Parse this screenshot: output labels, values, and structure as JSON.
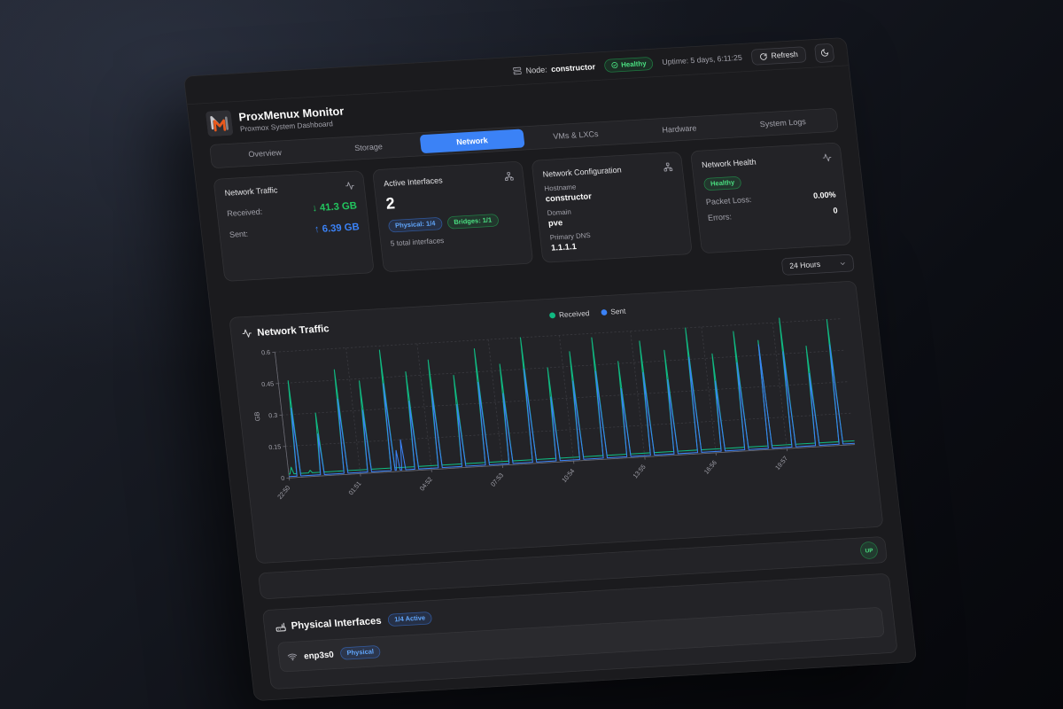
{
  "topbar": {
    "node_label": "Node:",
    "node_value": "constructor",
    "health_badge": "Healthy",
    "uptime": "Uptime: 5 days, 6:11:25",
    "refresh_label": "Refresh"
  },
  "header": {
    "title": "ProxMenux Monitor",
    "subtitle": "Proxmox System Dashboard"
  },
  "tabs": [
    {
      "label": "Overview",
      "active": false
    },
    {
      "label": "Storage",
      "active": false
    },
    {
      "label": "Network",
      "active": true
    },
    {
      "label": "VMs & LXCs",
      "active": false
    },
    {
      "label": "Hardware",
      "active": false
    },
    {
      "label": "System Logs",
      "active": false
    }
  ],
  "cards": {
    "traffic": {
      "title": "Network Traffic",
      "received_label": "Received:",
      "received_value": "↓ 41.3 GB",
      "sent_label": "Sent:",
      "sent_value": "↑ 6.39 GB"
    },
    "interfaces": {
      "title": "Active Interfaces",
      "count": "2",
      "physical_badge": "Physical: 1/4",
      "bridges_badge": "Bridges: 1/1",
      "total": "5 total interfaces"
    },
    "config": {
      "title": "Network Configuration",
      "hostname_label": "Hostname",
      "hostname": "constructor",
      "domain_label": "Domain",
      "domain": "pve",
      "dns_label": "Primary DNS",
      "dns": "1.1.1.1"
    },
    "health": {
      "title": "Network Health",
      "status_badge": "Healthy",
      "packet_loss_label": "Packet Loss:",
      "packet_loss": "0.00%",
      "errors_label": "Errors:",
      "errors": "0"
    }
  },
  "range_select": {
    "value": "24 Hours"
  },
  "chart_card": {
    "title": "Network Traffic"
  },
  "status_row": {
    "badge": "UP"
  },
  "physical": {
    "title": "Physical Interfaces",
    "active_badge": "1/4 Active",
    "rows": [
      {
        "name": "enp3s0",
        "type_badge": "Physical"
      }
    ]
  },
  "colors": {
    "accent_blue": "#3b82f6",
    "accent_green": "#22c55e",
    "chart_received": "#10b981",
    "chart_sent": "#3b82f6",
    "logo_orange": "#e8591d"
  },
  "chart_data": {
    "type": "line",
    "title": "Network Traffic",
    "ylabel": "GB",
    "ylim": [
      0,
      0.6
    ],
    "yticks": [
      0,
      0.15,
      0.3,
      0.45,
      0.6
    ],
    "x_range_minutes": [
      0,
      1440
    ],
    "x_ticks_minutes": [
      0,
      181,
      362,
      543,
      724,
      905,
      1086,
      1267
    ],
    "x_ticklabels": [
      "22:50",
      "01:51",
      "04:52",
      "07:53",
      "10:54",
      "13:55",
      "16:56",
      "19:57"
    ],
    "grid": "dashed",
    "legend_position": "top-center",
    "legend": [
      "Received",
      "Sent"
    ],
    "series": [
      {
        "name": "Received",
        "color": "#10b981",
        "baseline": 0.018,
        "spikes": [
          {
            "m": 8,
            "v": 0.05
          },
          {
            "m": 55,
            "v": 0.03
          },
          {
            "m": 25,
            "v": 0.46
          },
          {
            "m": 85,
            "v": 0.3
          },
          {
            "m": 145,
            "v": 0.5
          },
          {
            "m": 205,
            "v": 0.44
          },
          {
            "m": 265,
            "v": 0.58
          },
          {
            "m": 325,
            "v": 0.47
          },
          {
            "m": 385,
            "v": 0.52
          },
          {
            "m": 445,
            "v": 0.44
          },
          {
            "m": 505,
            "v": 0.56
          },
          {
            "m": 565,
            "v": 0.48
          },
          {
            "m": 625,
            "v": 0.6
          },
          {
            "m": 685,
            "v": 0.45
          },
          {
            "m": 745,
            "v": 0.52
          },
          {
            "m": 805,
            "v": 0.58
          },
          {
            "m": 865,
            "v": 0.46
          },
          {
            "m": 925,
            "v": 0.55
          },
          {
            "m": 985,
            "v": 0.5
          },
          {
            "m": 1045,
            "v": 0.6
          },
          {
            "m": 1105,
            "v": 0.47
          },
          {
            "m": 1165,
            "v": 0.57
          },
          {
            "m": 1225,
            "v": 0.52
          },
          {
            "m": 1285,
            "v": 0.62
          },
          {
            "m": 1345,
            "v": 0.48
          },
          {
            "m": 1405,
            "v": 0.6
          }
        ]
      },
      {
        "name": "Sent",
        "color": "#3b82f6",
        "baseline": 0.006,
        "spikes": [
          {
            "m": 278,
            "v": 0.1
          },
          {
            "m": 292,
            "v": 0.15
          },
          {
            "m": 25,
            "v": 0.33
          },
          {
            "m": 85,
            "v": 0.2
          },
          {
            "m": 145,
            "v": 0.36
          },
          {
            "m": 205,
            "v": 0.3
          },
          {
            "m": 265,
            "v": 0.42
          },
          {
            "m": 325,
            "v": 0.33
          },
          {
            "m": 385,
            "v": 0.38
          },
          {
            "m": 445,
            "v": 0.3
          },
          {
            "m": 505,
            "v": 0.4
          },
          {
            "m": 565,
            "v": 0.34
          },
          {
            "m": 625,
            "v": 0.45
          },
          {
            "m": 685,
            "v": 0.31
          },
          {
            "m": 745,
            "v": 0.38
          },
          {
            "m": 805,
            "v": 0.42
          },
          {
            "m": 865,
            "v": 0.33
          },
          {
            "m": 925,
            "v": 0.4
          },
          {
            "m": 985,
            "v": 0.36
          },
          {
            "m": 1045,
            "v": 0.46
          },
          {
            "m": 1105,
            "v": 0.34
          },
          {
            "m": 1165,
            "v": 0.42
          },
          {
            "m": 1225,
            "v": 0.5
          },
          {
            "m": 1285,
            "v": 0.46
          },
          {
            "m": 1345,
            "v": 0.35
          },
          {
            "m": 1405,
            "v": 0.48
          }
        ]
      }
    ]
  }
}
